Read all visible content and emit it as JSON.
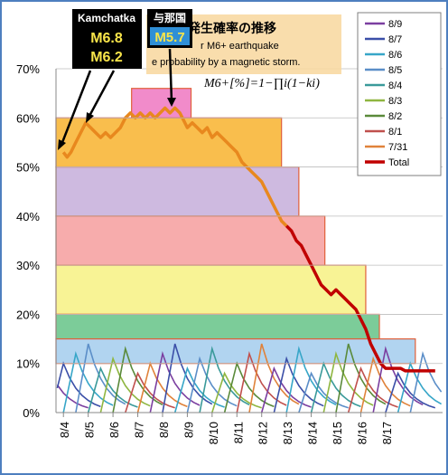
{
  "chart_data": {
    "type": "line",
    "title": "地震発生確率の推移",
    "title_prefix": "+",
    "subtitle_line1": "M6+ earthquake",
    "subtitle_line2": "e probability by a magnetic storm.",
    "subtitle_line1_prefix": "r",
    "formula": "M6+[%]=1−∏i(1−ki)",
    "y_ticks": [
      "0%",
      "10%",
      "20%",
      "30%",
      "40%",
      "50%",
      "60%",
      "70%"
    ],
    "ylim": [
      0,
      70
    ],
    "x_ticks": [
      "8/4",
      "8/5",
      "8/6",
      "8/7",
      "8/8",
      "8/9",
      "8/10",
      "8/11",
      "8/12",
      "8/13",
      "8/14",
      "8/15",
      "8/16",
      "8/17"
    ],
    "legend": [
      "8/9",
      "8/7",
      "8/6",
      "8/5",
      "8/4",
      "8/3",
      "8/2",
      "8/1",
      "7/31",
      "Total"
    ],
    "legend_colors": [
      "#7b3fa0",
      "#3b4fa8",
      "#37a6c8",
      "#5b8ec8",
      "#3a9a9a",
      "#8fb640",
      "#5a8a3a",
      "#c0504d",
      "#e0823a",
      "#c00000"
    ],
    "annotations": [
      {
        "label_top": "Kamchatka",
        "label_mag1": "M6.8",
        "label_mag2": "M6.2"
      },
      {
        "label_top": "与那国",
        "label_mag1": "M5.7"
      }
    ],
    "bands": [
      {
        "from_x": 0.0,
        "to_x": 8.8,
        "y0": 50,
        "y1": 60,
        "color": "#f8b73a"
      },
      {
        "from_x": 2.75,
        "to_x": 5.15,
        "y0": 60,
        "y1": 66,
        "color": "#ef7ec4"
      },
      {
        "from_x": 0.0,
        "to_x": 9.5,
        "y0": 40,
        "y1": 50,
        "color": "#c9b3dd"
      },
      {
        "from_x": 0.0,
        "to_x": 10.55,
        "y0": 30,
        "y1": 40,
        "color": "#f6a3a3"
      },
      {
        "from_x": 0.0,
        "to_x": 12.2,
        "y0": 20,
        "y1": 30,
        "color": "#f7f28a"
      },
      {
        "from_x": 0.0,
        "to_x": 12.75,
        "y0": 15,
        "y1": 20,
        "color": "#6ec68e"
      },
      {
        "from_x": 0.0,
        "to_x": 14.2,
        "y0": 10,
        "y1": 15,
        "color": "#a9cfee"
      }
    ],
    "total_series": {
      "name": "Total",
      "x": [
        0.0,
        0.15,
        0.3,
        0.5,
        0.7,
        0.9,
        1.1,
        1.3,
        1.5,
        1.7,
        1.9,
        2.1,
        2.3,
        2.5,
        2.7,
        2.9,
        3.1,
        3.3,
        3.5,
        3.7,
        3.9,
        4.1,
        4.3,
        4.5,
        4.7,
        4.9,
        5.0,
        5.2,
        5.4,
        5.6,
        5.8,
        6.0,
        6.2,
        6.4,
        6.6,
        6.8,
        7.0,
        7.2,
        7.4,
        7.6,
        7.8,
        8.0,
        8.2,
        8.4,
        8.6,
        8.8,
        9.0,
        9.2,
        9.4,
        9.6,
        9.8,
        10.0,
        10.2,
        10.4,
        10.6,
        10.8,
        11.0,
        11.2,
        11.4,
        11.6,
        11.8,
        12.0,
        12.2,
        12.4,
        12.6,
        12.8,
        13.0,
        13.2,
        13.4,
        13.6,
        13.8,
        14.0,
        14.2,
        14.4,
        14.6,
        14.8,
        15.0
      ],
      "y": [
        53,
        52,
        53,
        55,
        57,
        59,
        58,
        57,
        56,
        57,
        56,
        57,
        58,
        60,
        61,
        60,
        61,
        60,
        61,
        60,
        61,
        62,
        61,
        62,
        61,
        59,
        58,
        59,
        58,
        57,
        58,
        56,
        57,
        56,
        55,
        54,
        53,
        51,
        50,
        49,
        48,
        47,
        45,
        43,
        41,
        39,
        38,
        37,
        35,
        34,
        32,
        30,
        28,
        26,
        25,
        24,
        25,
        24,
        23,
        22,
        21,
        19,
        17,
        14,
        12,
        10,
        9,
        9,
        9,
        9,
        8.5,
        8.5,
        8.5,
        8.5,
        8.5,
        8.5,
        8.5
      ]
    }
  }
}
